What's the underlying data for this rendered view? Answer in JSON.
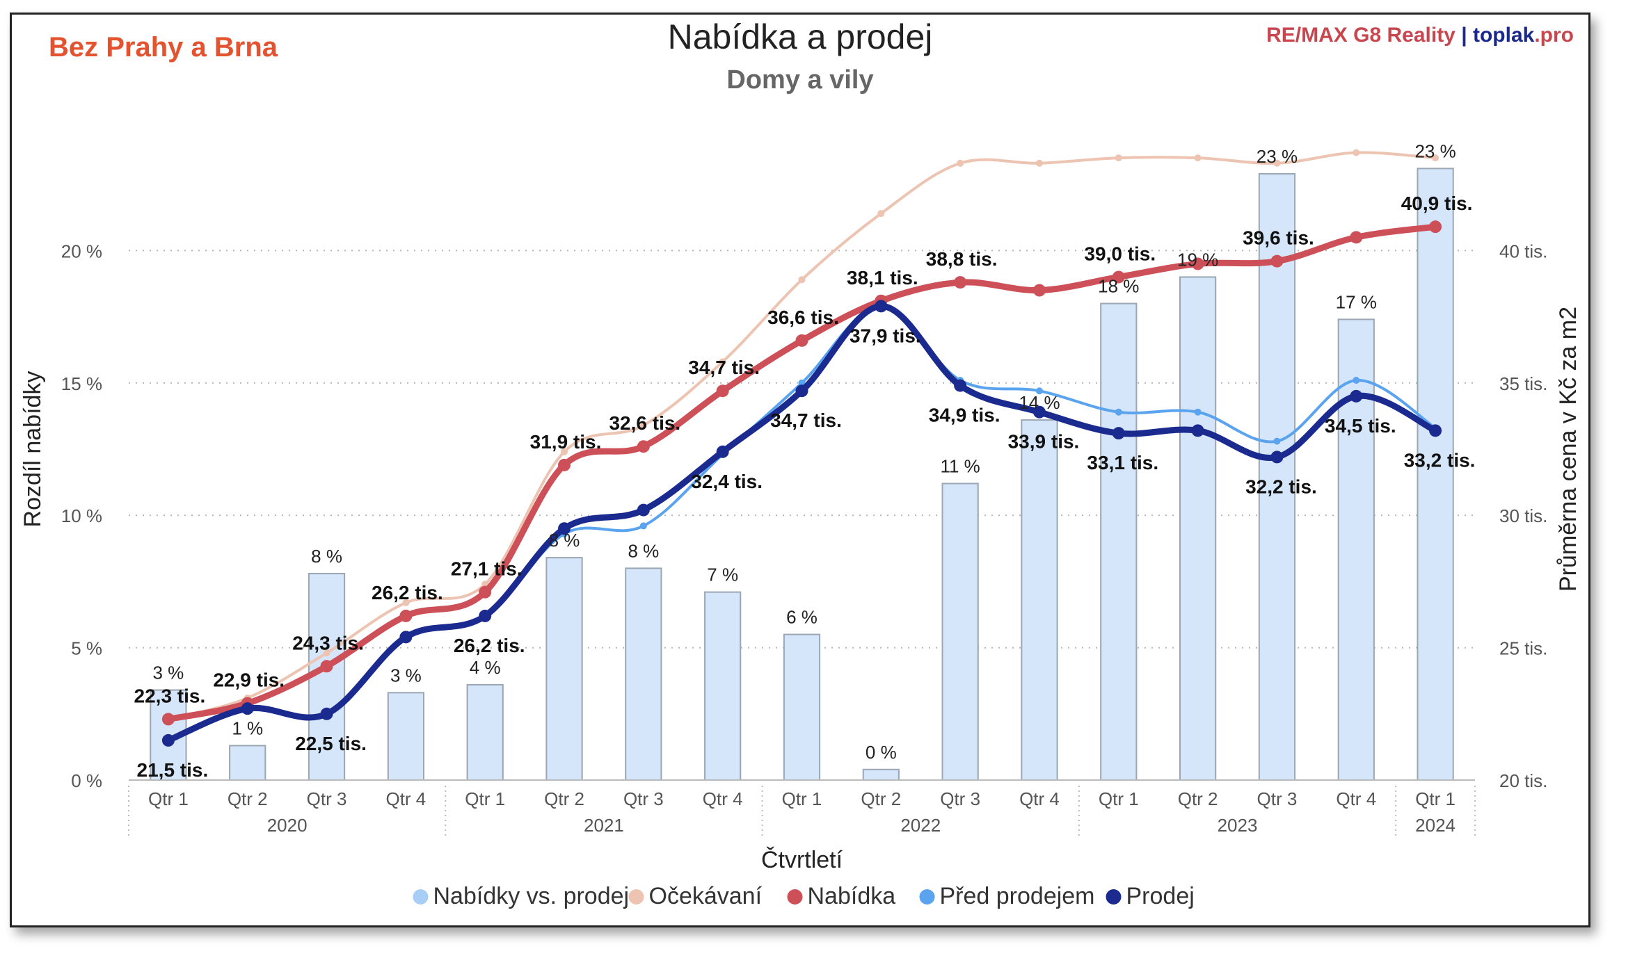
{
  "header": {
    "tag": "Bez Prahy a Brna",
    "title": "Nabídka a prodej",
    "subtitle": "Domy a vily",
    "brand_remax": "RE/MAX G8 Reality",
    "brand_sep": "|",
    "brand_toplak": "toplak",
    "brand_pro": ".pro"
  },
  "chart_data": {
    "type": "bar",
    "title": "Nabídka a prodej",
    "subtitle": "Domy a vily",
    "xlabel": "Čtvrtletí",
    "ylabel": "Rozdíl nabídky",
    "y2label": "Průměrna cena v Kč za m2",
    "ylim": [
      0,
      25
    ],
    "y2lim": [
      20,
      45
    ],
    "yticks": [
      "0 %",
      "5 %",
      "10 %",
      "15 %",
      "20 %"
    ],
    "y2ticks": [
      "20 tis.",
      "25 tis.",
      "30 tis.",
      "35 tis.",
      "40 tis."
    ],
    "categories": [
      "Qtr 1",
      "Qtr 2",
      "Qtr 3",
      "Qtr 4",
      "Qtr 1",
      "Qtr 2",
      "Qtr 3",
      "Qtr 4",
      "Qtr 1",
      "Qtr 2",
      "Qtr 3",
      "Qtr 4",
      "Qtr 1",
      "Qtr 2",
      "Qtr 3",
      "Qtr 4",
      "Qtr 1"
    ],
    "years": [
      {
        "label": "2020",
        "start": 0,
        "end": 3
      },
      {
        "label": "2021",
        "start": 4,
        "end": 7
      },
      {
        "label": "2022",
        "start": 8,
        "end": 11
      },
      {
        "label": "2023",
        "start": 12,
        "end": 15
      },
      {
        "label": "2024",
        "start": 16,
        "end": 16
      }
    ],
    "grid": true,
    "legend_position": "bottom",
    "series": [
      {
        "name": "Nabídky vs. prodej",
        "kind": "bar",
        "axis": "left",
        "color": "#d6e6fa",
        "legend_color": "#a9cef5",
        "values": [
          3.4,
          1.3,
          7.8,
          3.3,
          3.6,
          8.4,
          8.0,
          7.1,
          5.5,
          0.4,
          11.2,
          13.6,
          18.0,
          19.0,
          22.9,
          17.4,
          23.1
        ],
        "labels": [
          "3 %",
          "1 %",
          "8 %",
          "3 %",
          "4 %",
          "8 %",
          "8 %",
          "7 %",
          "6 %",
          "0 %",
          "11 %",
          "14 %",
          "18 %",
          "19 %",
          "23 %",
          "17 %",
          "23 %"
        ]
      },
      {
        "name": "Očekávaní",
        "kind": "line",
        "axis": "right",
        "color": "#edc3b1",
        "width": 4,
        "values": [
          22.3,
          23.1,
          24.8,
          26.7,
          27.4,
          32.4,
          33.4,
          35.8,
          38.9,
          41.4,
          43.3,
          43.3,
          43.5,
          43.5,
          43.3,
          43.7,
          43.5
        ]
      },
      {
        "name": "Nabídka",
        "kind": "line",
        "axis": "right",
        "color": "#cd4f57",
        "width": 9,
        "values": [
          22.3,
          22.9,
          24.3,
          26.2,
          27.1,
          31.9,
          32.6,
          34.7,
          36.6,
          38.1,
          38.8,
          38.5,
          39.0,
          39.5,
          39.6,
          40.5,
          40.9
        ],
        "labels": [
          "22,3 tis.",
          "22,9 tis.",
          "24,3 tis.",
          "26,2 tis.",
          "27,1 tis.",
          "31,9 tis.",
          "32,6 tis.",
          "34,7 tis.",
          "36,6 tis.",
          "38,1 tis.",
          "38,8 tis.",
          "",
          "39,0 tis.",
          "",
          "39,6 tis.",
          "",
          "40,9 tis."
        ]
      },
      {
        "name": "Před prodejem",
        "kind": "line",
        "axis": "right",
        "color": "#5aa3ef",
        "width": 4,
        "values": [
          21.5,
          22.7,
          22.5,
          25.4,
          26.2,
          29.3,
          29.6,
          32.3,
          35.0,
          37.9,
          35.1,
          34.7,
          33.9,
          33.9,
          32.8,
          35.1,
          33.3
        ]
      },
      {
        "name": "Prodej",
        "kind": "line",
        "axis": "right",
        "color": "#1b2a8f",
        "width": 9,
        "values": [
          21.5,
          22.7,
          22.5,
          25.4,
          26.2,
          29.5,
          30.2,
          32.4,
          34.7,
          37.9,
          34.9,
          33.9,
          33.1,
          33.2,
          32.2,
          34.5,
          33.2
        ],
        "labels": [
          "21,5 tis.",
          "",
          "22,5 tis.",
          "",
          "26,2 tis.",
          "",
          "",
          "32,4 tis.",
          "34,7 tis.",
          "37,9 tis.",
          "34,9 tis.",
          "33,9 tis.",
          "33,1 tis.",
          "",
          "32,2 tis.",
          "34,5 tis.",
          "33,2 tis."
        ]
      }
    ]
  }
}
